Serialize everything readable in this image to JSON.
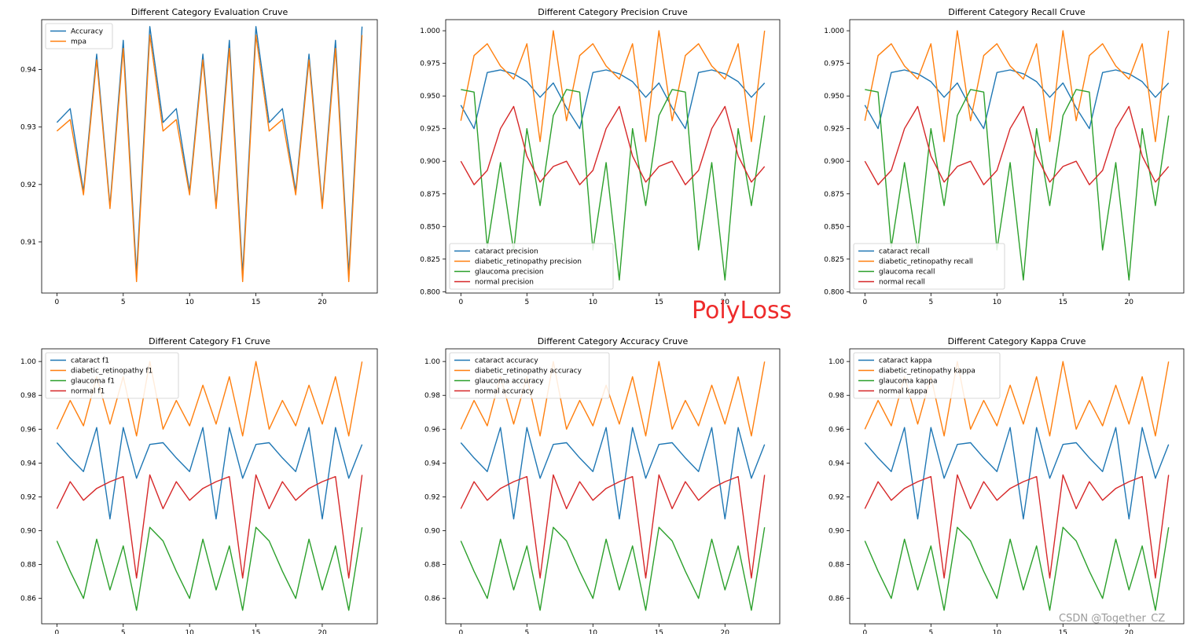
{
  "overlay_label": "PolyLoss",
  "watermark": "CSDN @Together_CZ",
  "colors": {
    "blue": "#1f77b4",
    "orange": "#ff7f0e",
    "green": "#2ca02c",
    "red": "#d62728",
    "axis": "#000000"
  },
  "chart_data": [
    {
      "type": "line",
      "title": "Different Category Evaluation Cruve",
      "xlim": [
        -1.15,
        24.15
      ],
      "ylim": [
        0.9011,
        0.9487
      ],
      "xticks": [
        0,
        5,
        10,
        15,
        20
      ],
      "yticks": [
        0.91,
        0.92,
        0.93,
        0.94
      ],
      "ytick_labels": [
        "0.91",
        "0.92",
        "0.93",
        "0.94"
      ],
      "legend_position": "upper-left",
      "series": [
        {
          "name": "Accuracy",
          "color": "#1f77b4",
          "values": [
            0.9308,
            0.9332,
            0.9188,
            0.9427,
            0.9163,
            0.9451,
            0.9044,
            0.9475,
            0.9308,
            0.9332,
            0.9188,
            0.9427,
            0.9163,
            0.9451,
            0.9044,
            0.9475,
            0.9308,
            0.9332,
            0.9188,
            0.9427,
            0.9163,
            0.9451,
            0.9044,
            0.9475
          ]
        },
        {
          "name": "mpa",
          "color": "#ff7f0e",
          "values": [
            0.9293,
            0.9313,
            0.9182,
            0.9417,
            0.9158,
            0.9437,
            0.9031,
            0.946,
            0.9293,
            0.9313,
            0.9182,
            0.9417,
            0.9158,
            0.9437,
            0.9031,
            0.946,
            0.9293,
            0.9313,
            0.9182,
            0.9417,
            0.9158,
            0.9437,
            0.9031,
            0.946
          ]
        }
      ]
    },
    {
      "type": "line",
      "title": "Different Category Precision Cruve",
      "xlim": [
        -1.15,
        24.15
      ],
      "ylim": [
        0.799,
        1.0085
      ],
      "xticks": [
        0,
        5,
        10,
        15,
        20
      ],
      "yticks": [
        0.8,
        0.825,
        0.85,
        0.875,
        0.9,
        0.925,
        0.95,
        0.975,
        1.0
      ],
      "ytick_labels": [
        "0.800",
        "0.825",
        "0.850",
        "0.875",
        "0.900",
        "0.925",
        "0.950",
        "0.975",
        "1.000"
      ],
      "legend_position": "lower-left",
      "series": [
        {
          "name": "cataract precision",
          "color": "#1f77b4",
          "values": [
            0.943,
            0.925,
            0.968,
            0.97,
            0.967,
            0.961,
            0.949,
            0.96,
            0.941,
            0.925,
            0.968,
            0.97,
            0.967,
            0.961,
            0.949,
            0.96,
            0.941,
            0.925,
            0.968,
            0.97,
            0.967,
            0.961,
            0.949,
            0.96
          ]
        },
        {
          "name": "diabetic_retinopathy precision",
          "color": "#ff7f0e",
          "values": [
            0.931,
            0.981,
            0.99,
            0.973,
            0.963,
            0.99,
            0.915,
            1.0,
            0.931,
            0.981,
            0.99,
            0.973,
            0.963,
            0.99,
            0.915,
            1.0,
            0.931,
            0.981,
            0.99,
            0.973,
            0.963,
            0.99,
            0.915,
            1.0
          ]
        },
        {
          "name": "glaucoma precision",
          "color": "#2ca02c",
          "values": [
            0.955,
            0.953,
            0.834,
            0.899,
            0.831,
            0.925,
            0.866,
            0.935,
            0.955,
            0.953,
            0.832,
            0.899,
            0.809,
            0.925,
            0.866,
            0.935,
            0.955,
            0.953,
            0.832,
            0.899,
            0.809,
            0.925,
            0.866,
            0.935
          ]
        },
        {
          "name": "normal precision",
          "color": "#d62728",
          "values": [
            0.9,
            0.882,
            0.893,
            0.925,
            0.942,
            0.904,
            0.884,
            0.896,
            0.9,
            0.882,
            0.893,
            0.925,
            0.942,
            0.904,
            0.884,
            0.896,
            0.9,
            0.882,
            0.893,
            0.925,
            0.942,
            0.904,
            0.884,
            0.896
          ]
        }
      ]
    },
    {
      "type": "line",
      "title": "Different Category Recall Cruve",
      "xlim": [
        -1.15,
        24.15
      ],
      "ylim": [
        0.799,
        1.0085
      ],
      "xticks": [
        0,
        5,
        10,
        15,
        20
      ],
      "yticks": [
        0.8,
        0.825,
        0.85,
        0.875,
        0.9,
        0.925,
        0.95,
        0.975,
        1.0
      ],
      "ytick_labels": [
        "0.800",
        "0.825",
        "0.850",
        "0.875",
        "0.900",
        "0.925",
        "0.950",
        "0.975",
        "1.000"
      ],
      "legend_position": "lower-left",
      "series": [
        {
          "name": "cataract recall",
          "color": "#1f77b4",
          "values": [
            0.943,
            0.925,
            0.968,
            0.97,
            0.967,
            0.961,
            0.949,
            0.96,
            0.941,
            0.925,
            0.968,
            0.97,
            0.967,
            0.961,
            0.949,
            0.96,
            0.941,
            0.925,
            0.968,
            0.97,
            0.967,
            0.961,
            0.949,
            0.96
          ]
        },
        {
          "name": "diabetic_retinopathy recall",
          "color": "#ff7f0e",
          "values": [
            0.931,
            0.981,
            0.99,
            0.973,
            0.963,
            0.99,
            0.915,
            1.0,
            0.931,
            0.981,
            0.99,
            0.973,
            0.963,
            0.99,
            0.915,
            1.0,
            0.931,
            0.981,
            0.99,
            0.973,
            0.963,
            0.99,
            0.915,
            1.0
          ]
        },
        {
          "name": "glaucoma recall",
          "color": "#2ca02c",
          "values": [
            0.955,
            0.953,
            0.834,
            0.899,
            0.831,
            0.925,
            0.866,
            0.935,
            0.955,
            0.953,
            0.832,
            0.899,
            0.809,
            0.925,
            0.866,
            0.935,
            0.955,
            0.953,
            0.832,
            0.899,
            0.809,
            0.925,
            0.866,
            0.935
          ]
        },
        {
          "name": "normal recall",
          "color": "#d62728",
          "values": [
            0.9,
            0.882,
            0.893,
            0.925,
            0.942,
            0.904,
            0.884,
            0.896,
            0.9,
            0.882,
            0.893,
            0.925,
            0.942,
            0.904,
            0.884,
            0.896,
            0.9,
            0.882,
            0.893,
            0.925,
            0.942,
            0.904,
            0.884,
            0.896
          ]
        }
      ]
    },
    {
      "type": "line",
      "title": "Different Category F1 Cruve",
      "xlim": [
        -1.15,
        24.15
      ],
      "ylim": [
        0.845,
        1.0075
      ],
      "xticks": [
        0,
        5,
        10,
        15,
        20
      ],
      "yticks": [
        0.86,
        0.88,
        0.9,
        0.92,
        0.94,
        0.96,
        0.98,
        1.0
      ],
      "ytick_labels": [
        "0.86",
        "0.88",
        "0.90",
        "0.92",
        "0.94",
        "0.96",
        "0.98",
        "1.00"
      ],
      "legend_position": "upper-left",
      "series": [
        {
          "name": "cataract f1",
          "color": "#1f77b4",
          "values": [
            0.952,
            0.943,
            0.935,
            0.961,
            0.907,
            0.961,
            0.931,
            0.951,
            0.952,
            0.943,
            0.935,
            0.961,
            0.907,
            0.961,
            0.931,
            0.951,
            0.952,
            0.943,
            0.935,
            0.961,
            0.907,
            0.961,
            0.931,
            0.951
          ]
        },
        {
          "name": "diabetic_retinopathy f1",
          "color": "#ff7f0e",
          "values": [
            0.96,
            0.977,
            0.962,
            0.991,
            0.963,
            0.991,
            0.956,
            1.0,
            0.96,
            0.977,
            0.962,
            0.986,
            0.963,
            0.991,
            0.956,
            1.0,
            0.96,
            0.977,
            0.962,
            0.986,
            0.963,
            0.991,
            0.956,
            1.0
          ]
        },
        {
          "name": "glaucoma f1",
          "color": "#2ca02c",
          "values": [
            0.894,
            0.876,
            0.86,
            0.895,
            0.865,
            0.891,
            0.853,
            0.902,
            0.894,
            0.876,
            0.86,
            0.895,
            0.865,
            0.891,
            0.853,
            0.902,
            0.894,
            0.876,
            0.86,
            0.895,
            0.865,
            0.891,
            0.853,
            0.902
          ]
        },
        {
          "name": "normal f1",
          "color": "#d62728",
          "values": [
            0.913,
            0.929,
            0.918,
            0.925,
            0.929,
            0.932,
            0.872,
            0.933,
            0.913,
            0.929,
            0.918,
            0.925,
            0.929,
            0.932,
            0.872,
            0.933,
            0.913,
            0.929,
            0.918,
            0.925,
            0.929,
            0.932,
            0.872,
            0.933
          ]
        }
      ]
    },
    {
      "type": "line",
      "title": "Different Category Accuracy Cruve",
      "xlim": [
        -1.15,
        24.15
      ],
      "ylim": [
        0.845,
        1.0075
      ],
      "xticks": [
        0,
        5,
        10,
        15,
        20
      ],
      "yticks": [
        0.86,
        0.88,
        0.9,
        0.92,
        0.94,
        0.96,
        0.98,
        1.0
      ],
      "ytick_labels": [
        "0.86",
        "0.88",
        "0.90",
        "0.92",
        "0.94",
        "0.96",
        "0.98",
        "1.00"
      ],
      "legend_position": "upper-left",
      "series": [
        {
          "name": "cataract accuracy",
          "color": "#1f77b4",
          "values": [
            0.952,
            0.943,
            0.935,
            0.961,
            0.907,
            0.961,
            0.931,
            0.951,
            0.952,
            0.943,
            0.935,
            0.961,
            0.907,
            0.961,
            0.931,
            0.951,
            0.952,
            0.943,
            0.935,
            0.961,
            0.907,
            0.961,
            0.931,
            0.951
          ]
        },
        {
          "name": "diabetic_retinopathy accuracy",
          "color": "#ff7f0e",
          "values": [
            0.96,
            0.977,
            0.962,
            0.991,
            0.963,
            0.991,
            0.956,
            1.0,
            0.96,
            0.977,
            0.962,
            0.986,
            0.963,
            0.991,
            0.956,
            1.0,
            0.96,
            0.977,
            0.962,
            0.986,
            0.963,
            0.991,
            0.956,
            1.0
          ]
        },
        {
          "name": "glaucoma accuracy",
          "color": "#2ca02c",
          "values": [
            0.894,
            0.876,
            0.86,
            0.895,
            0.865,
            0.891,
            0.853,
            0.902,
            0.894,
            0.876,
            0.86,
            0.895,
            0.865,
            0.891,
            0.853,
            0.902,
            0.894,
            0.876,
            0.86,
            0.895,
            0.865,
            0.891,
            0.853,
            0.902
          ]
        },
        {
          "name": "normal accuracy",
          "color": "#d62728",
          "values": [
            0.913,
            0.929,
            0.918,
            0.925,
            0.929,
            0.932,
            0.872,
            0.933,
            0.913,
            0.929,
            0.918,
            0.925,
            0.929,
            0.932,
            0.872,
            0.933,
            0.913,
            0.929,
            0.918,
            0.925,
            0.929,
            0.932,
            0.872,
            0.933
          ]
        }
      ]
    },
    {
      "type": "line",
      "title": "Different Category Kappa Cruve",
      "xlim": [
        -1.15,
        24.15
      ],
      "ylim": [
        0.845,
        1.0075
      ],
      "xticks": [
        0,
        5,
        10,
        15,
        20
      ],
      "yticks": [
        0.86,
        0.88,
        0.9,
        0.92,
        0.94,
        0.96,
        0.98,
        1.0
      ],
      "ytick_labels": [
        "0.86",
        "0.88",
        "0.90",
        "0.92",
        "0.94",
        "0.96",
        "0.98",
        "1.00"
      ],
      "legend_position": "upper-left",
      "series": [
        {
          "name": "cataract kappa",
          "color": "#1f77b4",
          "values": [
            0.952,
            0.943,
            0.935,
            0.961,
            0.907,
            0.961,
            0.931,
            0.951,
            0.952,
            0.943,
            0.935,
            0.961,
            0.907,
            0.961,
            0.931,
            0.951,
            0.952,
            0.943,
            0.935,
            0.961,
            0.907,
            0.961,
            0.931,
            0.951
          ]
        },
        {
          "name": "diabetic_retinopathy kappa",
          "color": "#ff7f0e",
          "values": [
            0.96,
            0.977,
            0.962,
            0.991,
            0.963,
            0.991,
            0.956,
            1.0,
            0.96,
            0.977,
            0.962,
            0.986,
            0.963,
            0.991,
            0.956,
            1.0,
            0.96,
            0.977,
            0.962,
            0.986,
            0.963,
            0.991,
            0.956,
            1.0
          ]
        },
        {
          "name": "glaucoma kappa",
          "color": "#2ca02c",
          "values": [
            0.894,
            0.876,
            0.86,
            0.895,
            0.865,
            0.891,
            0.853,
            0.902,
            0.894,
            0.876,
            0.86,
            0.895,
            0.865,
            0.891,
            0.853,
            0.902,
            0.894,
            0.876,
            0.86,
            0.895,
            0.865,
            0.891,
            0.853,
            0.902
          ]
        },
        {
          "name": "normal kappa",
          "color": "#d62728",
          "values": [
            0.913,
            0.929,
            0.918,
            0.925,
            0.929,
            0.932,
            0.872,
            0.933,
            0.913,
            0.929,
            0.918,
            0.925,
            0.929,
            0.932,
            0.872,
            0.933,
            0.913,
            0.929,
            0.918,
            0.925,
            0.929,
            0.932,
            0.872,
            0.933
          ]
        }
      ]
    }
  ]
}
